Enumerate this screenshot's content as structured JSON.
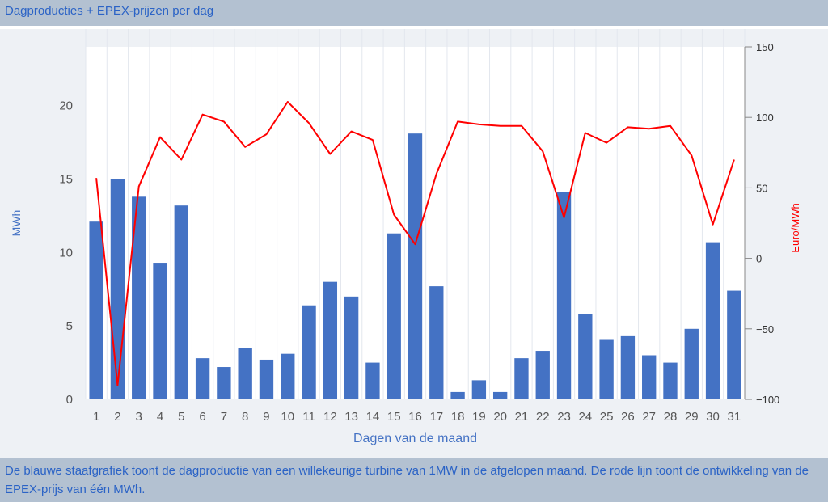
{
  "header": {
    "title": "Dagproducties + EPEX-prijzen per dag"
  },
  "footer": {
    "text": "De blauwe staafgrafiek toont de dagproductie van een willekeurige turbine van 1MW in de afgelopen maand. De rode lijn toont de ontwikkeling van de EPEX-prijs van één MWh."
  },
  "colors": {
    "bar": "#4472c4",
    "line": "#ff0000",
    "left_axis_label": "#4472c4",
    "right_axis_label": "#ff0000"
  },
  "chart_data": {
    "type": "bar",
    "categories": [
      "1",
      "2",
      "3",
      "4",
      "5",
      "6",
      "7",
      "8",
      "9",
      "10",
      "11",
      "12",
      "13",
      "14",
      "15",
      "16",
      "17",
      "18",
      "19",
      "20",
      "21",
      "22",
      "23",
      "24",
      "25",
      "26",
      "27",
      "28",
      "29",
      "30",
      "31"
    ],
    "series": [
      {
        "type": "bar",
        "axis": "left",
        "values": [
          12.1,
          15.0,
          13.8,
          9.3,
          13.2,
          2.8,
          2.2,
          3.5,
          2.7,
          3.1,
          6.4,
          8.0,
          7.0,
          2.5,
          11.3,
          18.1,
          7.7,
          0.5,
          1.3,
          0.5,
          2.8,
          3.3,
          14.1,
          5.8,
          4.1,
          4.3,
          3.0,
          2.5,
          4.8,
          10.7,
          7.4
        ]
      },
      {
        "type": "line",
        "axis": "right",
        "values": [
          57,
          -90,
          51,
          86,
          70,
          102,
          97,
          79,
          88,
          111,
          96,
          74,
          90,
          84,
          31,
          10,
          60,
          97,
          95,
          94,
          94,
          76,
          29,
          89,
          82,
          93,
          92,
          94,
          73,
          24,
          70
        ]
      }
    ],
    "xlabel": "Dagen van de maand",
    "ylabel": "MWh",
    "y2label": "Euro/MWh",
    "ylim": [
      0,
      24
    ],
    "yticks": [
      0,
      5,
      10,
      15,
      20
    ],
    "y2lim": [
      -100,
      150
    ],
    "y2ticks": [
      -100,
      -50,
      0,
      50,
      100,
      150
    ],
    "grid": "vertical"
  }
}
